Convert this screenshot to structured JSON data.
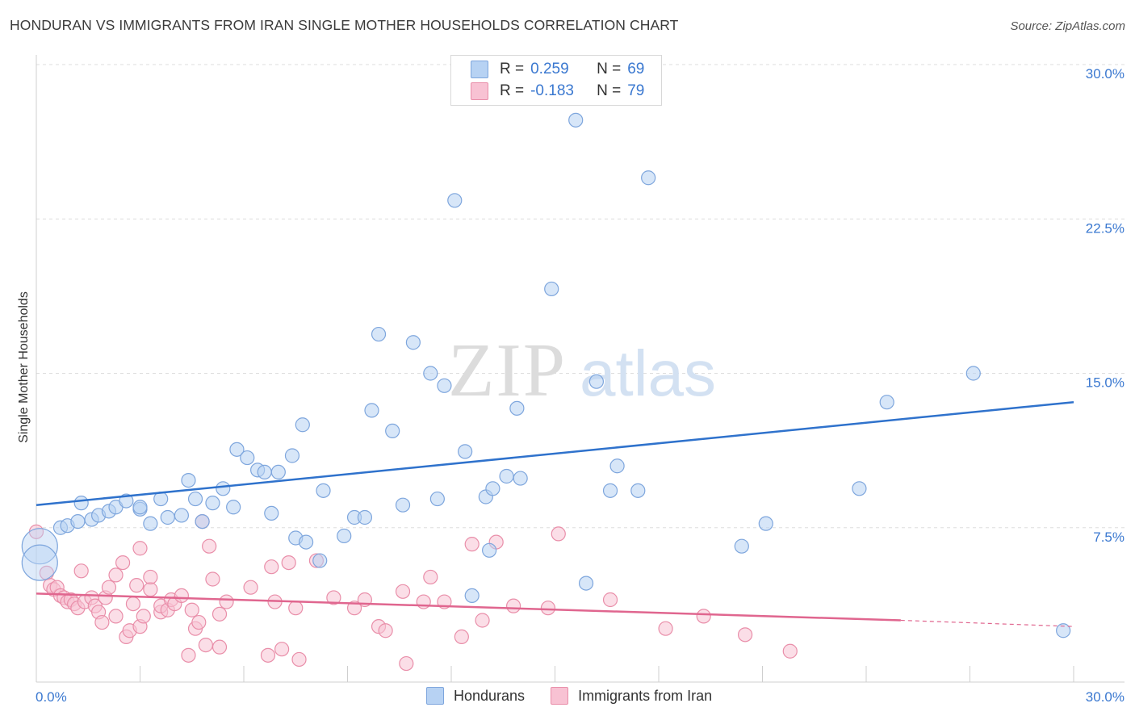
{
  "title": "HONDURAN VS IMMIGRANTS FROM IRAN SINGLE MOTHER HOUSEHOLDS CORRELATION CHART",
  "source": "Source: ZipAtlas.com",
  "watermark": {
    "zip": "ZIP",
    "atlas": "atlas"
  },
  "legend_top": {
    "rows": [
      {
        "r_label": "R =",
        "r_value": "0.259",
        "n_label": "N =",
        "n_value": "69"
      },
      {
        "r_label": "R =",
        "r_value": "-0.183",
        "n_label": "N =",
        "n_value": "79"
      }
    ]
  },
  "legend_bottom": [
    "Hondurans",
    "Immigrants from Iran"
  ],
  "colors": {
    "blue_fill": "#b7d2f3",
    "blue_stroke": "#7ea6dd",
    "blue_line": "#2f72cc",
    "pink_fill": "#f8c2d3",
    "pink_stroke": "#e98ea9",
    "pink_line": "#e0668f",
    "grid": "#dddddd",
    "axis_text": "#3a78d0"
  },
  "chart_data": {
    "type": "scatter",
    "title": "HONDURAN VS IMMIGRANTS FROM IRAN SINGLE MOTHER HOUSEHOLDS CORRELATION CHART",
    "xlabel": "",
    "ylabel": "Single Mother Households",
    "xlim": [
      0,
      30
    ],
    "ylim": [
      0,
      30
    ],
    "x_tick_labels": [
      "0.0%",
      "30.0%"
    ],
    "y_tick_labels": [
      "7.5%",
      "15.0%",
      "22.5%",
      "30.0%"
    ],
    "y_ticks": [
      7.5,
      15.0,
      22.5,
      30.0
    ],
    "grid": "horizontal dashed",
    "legend_placement": "top-center",
    "series": [
      {
        "name": "Hondurans",
        "r": 0.259,
        "n": 69,
        "trend": {
          "x": [
            0,
            30
          ],
          "y": [
            8.6,
            13.6
          ]
        },
        "points": [
          [
            0.7,
            7.5
          ],
          [
            0.9,
            7.6
          ],
          [
            1.2,
            7.8
          ],
          [
            1.3,
            8.7
          ],
          [
            1.6,
            7.9
          ],
          [
            1.8,
            8.1
          ],
          [
            2.1,
            8.3
          ],
          [
            2.3,
            8.5
          ],
          [
            2.6,
            8.8
          ],
          [
            3.0,
            8.4
          ],
          [
            3.0,
            8.5
          ],
          [
            3.3,
            7.7
          ],
          [
            3.6,
            8.9
          ],
          [
            3.8,
            8.0
          ],
          [
            4.2,
            8.1
          ],
          [
            4.4,
            9.8
          ],
          [
            4.6,
            8.9
          ],
          [
            4.8,
            7.8
          ],
          [
            5.1,
            8.7
          ],
          [
            5.4,
            9.4
          ],
          [
            5.7,
            8.5
          ],
          [
            5.8,
            11.3
          ],
          [
            6.1,
            10.9
          ],
          [
            6.4,
            10.3
          ],
          [
            6.6,
            10.2
          ],
          [
            6.8,
            8.2
          ],
          [
            7.0,
            10.2
          ],
          [
            7.4,
            11.0
          ],
          [
            7.5,
            7.0
          ],
          [
            7.7,
            12.5
          ],
          [
            7.8,
            6.8
          ],
          [
            8.2,
            5.9
          ],
          [
            8.3,
            9.3
          ],
          [
            8.9,
            7.1
          ],
          [
            9.2,
            8.0
          ],
          [
            9.5,
            8.0
          ],
          [
            9.7,
            13.2
          ],
          [
            9.9,
            16.9
          ],
          [
            10.3,
            12.2
          ],
          [
            10.6,
            8.6
          ],
          [
            10.9,
            16.5
          ],
          [
            11.4,
            15.0
          ],
          [
            11.6,
            8.9
          ],
          [
            11.8,
            14.4
          ],
          [
            12.1,
            23.4
          ],
          [
            12.4,
            11.2
          ],
          [
            12.6,
            4.2
          ],
          [
            13.0,
            9.0
          ],
          [
            13.1,
            6.4
          ],
          [
            13.2,
            9.4
          ],
          [
            13.6,
            10.0
          ],
          [
            13.9,
            13.3
          ],
          [
            14.0,
            9.9
          ],
          [
            14.9,
            19.1
          ],
          [
            15.6,
            27.3
          ],
          [
            15.9,
            4.8
          ],
          [
            16.2,
            14.6
          ],
          [
            16.6,
            9.3
          ],
          [
            16.8,
            10.5
          ],
          [
            17.4,
            9.3
          ],
          [
            17.7,
            24.5
          ],
          [
            20.4,
            6.6
          ],
          [
            21.1,
            7.7
          ],
          [
            23.8,
            9.4
          ],
          [
            24.6,
            13.6
          ],
          [
            27.1,
            15.0
          ],
          [
            29.7,
            2.5
          ],
          [
            0.1,
            6.6
          ],
          [
            0.1,
            5.8
          ]
        ]
      },
      {
        "name": "Immigrants from Iran",
        "r": -0.183,
        "n": 79,
        "trend": {
          "x": [
            0,
            25
          ],
          "y": [
            4.3,
            3.0
          ]
        },
        "trend_dashed": {
          "x": [
            25,
            30
          ],
          "y": [
            3.0,
            2.7
          ]
        },
        "points": [
          [
            0.0,
            7.3
          ],
          [
            0.3,
            5.3
          ],
          [
            0.4,
            4.7
          ],
          [
            0.5,
            4.5
          ],
          [
            0.6,
            4.6
          ],
          [
            0.7,
            4.2
          ],
          [
            0.8,
            4.1
          ],
          [
            0.9,
            3.9
          ],
          [
            1.0,
            4.0
          ],
          [
            1.1,
            3.8
          ],
          [
            1.2,
            3.6
          ],
          [
            1.3,
            5.4
          ],
          [
            1.4,
            3.9
          ],
          [
            1.6,
            4.1
          ],
          [
            1.7,
            3.7
          ],
          [
            1.8,
            3.4
          ],
          [
            1.9,
            2.9
          ],
          [
            2.0,
            4.1
          ],
          [
            2.1,
            4.6
          ],
          [
            2.3,
            3.2
          ],
          [
            2.3,
            5.2
          ],
          [
            2.5,
            5.8
          ],
          [
            2.6,
            2.2
          ],
          [
            2.7,
            2.5
          ],
          [
            2.8,
            3.8
          ],
          [
            2.9,
            4.7
          ],
          [
            3.0,
            2.7
          ],
          [
            3.0,
            6.5
          ],
          [
            3.1,
            3.2
          ],
          [
            3.3,
            4.5
          ],
          [
            3.3,
            5.1
          ],
          [
            3.6,
            3.4
          ],
          [
            3.6,
            3.7
          ],
          [
            3.8,
            3.5
          ],
          [
            3.9,
            4.0
          ],
          [
            4.0,
            3.8
          ],
          [
            4.2,
            4.2
          ],
          [
            4.4,
            1.3
          ],
          [
            4.5,
            3.5
          ],
          [
            4.6,
            2.6
          ],
          [
            4.7,
            2.9
          ],
          [
            4.8,
            7.8
          ],
          [
            4.9,
            1.8
          ],
          [
            5.0,
            6.6
          ],
          [
            5.1,
            5.0
          ],
          [
            5.3,
            1.7
          ],
          [
            5.3,
            3.3
          ],
          [
            5.5,
            3.9
          ],
          [
            6.2,
            4.6
          ],
          [
            6.7,
            1.3
          ],
          [
            6.8,
            5.6
          ],
          [
            6.9,
            3.9
          ],
          [
            7.1,
            1.6
          ],
          [
            7.3,
            5.8
          ],
          [
            7.5,
            3.6
          ],
          [
            7.6,
            1.1
          ],
          [
            8.1,
            5.9
          ],
          [
            8.6,
            4.1
          ],
          [
            9.2,
            3.6
          ],
          [
            9.5,
            4.0
          ],
          [
            9.9,
            2.7
          ],
          [
            10.1,
            2.5
          ],
          [
            10.6,
            4.4
          ],
          [
            10.7,
            0.9
          ],
          [
            11.2,
            3.9
          ],
          [
            11.4,
            5.1
          ],
          [
            11.8,
            3.9
          ],
          [
            12.3,
            2.2
          ],
          [
            12.6,
            6.7
          ],
          [
            12.9,
            3.0
          ],
          [
            13.3,
            6.8
          ],
          [
            13.8,
            3.7
          ],
          [
            14.8,
            3.6
          ],
          [
            15.1,
            7.2
          ],
          [
            16.6,
            4.0
          ],
          [
            18.2,
            2.6
          ],
          [
            19.3,
            3.2
          ],
          [
            20.5,
            2.3
          ],
          [
            21.8,
            1.5
          ]
        ]
      }
    ]
  }
}
